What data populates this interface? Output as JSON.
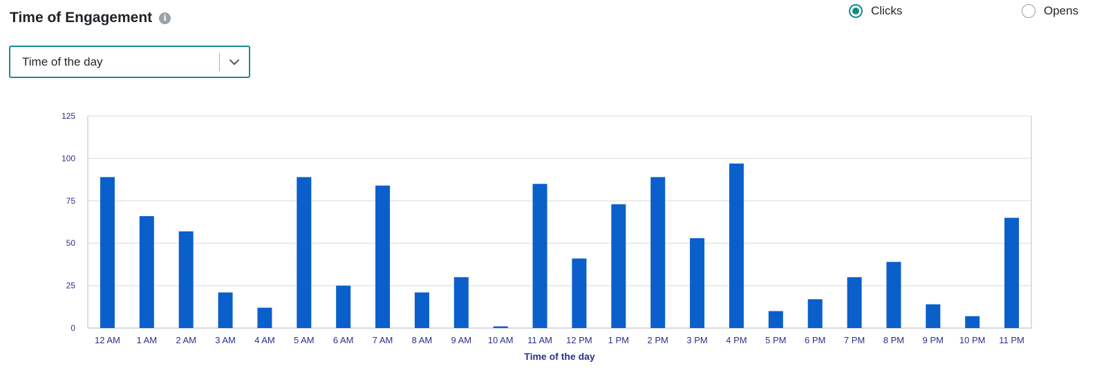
{
  "header": {
    "title": "Time of Engagement",
    "info_icon": "info-icon"
  },
  "radio": {
    "options": [
      {
        "label": "Clicks",
        "selected": true
      },
      {
        "label": "Opens",
        "selected": false
      }
    ],
    "accent_color": "#138a8a"
  },
  "select": {
    "value": "Time of the day",
    "icon": "chevron-down-icon"
  },
  "chart_data": {
    "type": "bar",
    "title": "",
    "xlabel": "Time of the day",
    "ylabel": "",
    "ylim": [
      0,
      125
    ],
    "yticks": [
      0,
      25,
      50,
      75,
      100,
      125
    ],
    "grid": true,
    "bar_color": "#0a5fcb",
    "categories": [
      "12 AM",
      "1 AM",
      "2 AM",
      "3 AM",
      "4 AM",
      "5 AM",
      "6 AM",
      "7 AM",
      "8 AM",
      "9 AM",
      "10 AM",
      "11 AM",
      "12 PM",
      "1 PM",
      "2 PM",
      "3 PM",
      "4 PM",
      "5 PM",
      "6 PM",
      "7 PM",
      "8 PM",
      "9 PM",
      "10 PM",
      "11 PM"
    ],
    "values": [
      89,
      66,
      57,
      21,
      12,
      89,
      25,
      84,
      21,
      30,
      1,
      85,
      41,
      73,
      89,
      53,
      97,
      10,
      17,
      30,
      39,
      14,
      7,
      65
    ]
  }
}
